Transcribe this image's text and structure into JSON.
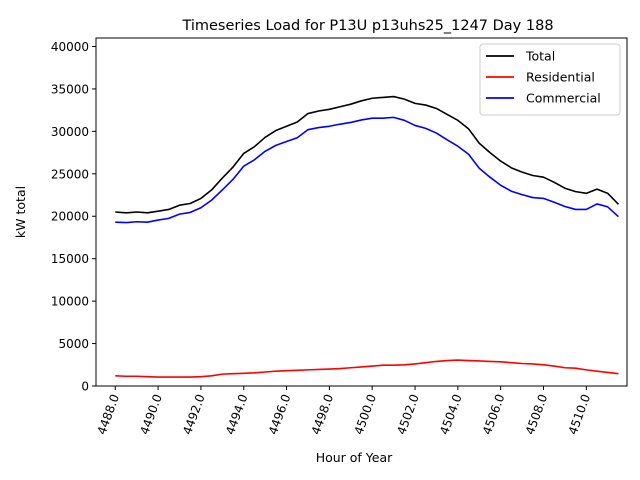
{
  "chart_data": {
    "type": "line",
    "title": "Timeseries Load for P13U p13uhs25_1247  Day 188",
    "xlabel": "Hour of Year",
    "ylabel": "kW total",
    "xlim": [
      4487.1,
      4511.9
    ],
    "ylim": [
      0,
      41000
    ],
    "xticks": [
      4488,
      4490,
      4492,
      4494,
      4496,
      4498,
      4500,
      4502,
      4504,
      4506,
      4508,
      4510
    ],
    "xtick_labels": [
      "4488.0",
      "4490.0",
      "4492.0",
      "4494.0",
      "4496.0",
      "4498.0",
      "4500.0",
      "4502.0",
      "4504.0",
      "4506.0",
      "4508.0",
      "4510.0"
    ],
    "yticks": [
      0,
      5000,
      10000,
      15000,
      20000,
      25000,
      30000,
      35000,
      40000
    ],
    "ytick_labels": [
      "0",
      "5000",
      "10000",
      "15000",
      "20000",
      "25000",
      "30000",
      "35000",
      "40000"
    ],
    "legend_position": "top-right",
    "grid": false,
    "x": [
      4488.0,
      4488.5,
      4489.0,
      4489.5,
      4490.0,
      4490.5,
      4491.0,
      4491.5,
      4492.0,
      4492.5,
      4493.0,
      4493.5,
      4494.0,
      4494.5,
      4495.0,
      4495.5,
      4496.0,
      4496.5,
      4497.0,
      4497.5,
      4498.0,
      4498.5,
      4499.0,
      4499.5,
      4500.0,
      4500.5,
      4501.0,
      4501.5,
      4502.0,
      4502.5,
      4503.0,
      4503.5,
      4504.0,
      4504.5,
      4505.0,
      4505.5,
      4506.0,
      4506.5,
      4507.0,
      4507.5,
      4508.0,
      4508.5,
      4509.0,
      4509.5,
      4510.0,
      4510.5,
      4511.0,
      4511.5
    ],
    "series": [
      {
        "name": "Total",
        "color": "#000000",
        "values": [
          20500,
          20400,
          20500,
          20400,
          20600,
          20800,
          21300,
          21500,
          22100,
          23100,
          24500,
          25800,
          27400,
          28200,
          29300,
          30100,
          30600,
          31100,
          32100,
          32400,
          32600,
          32900,
          33200,
          33600,
          33900,
          34000,
          34100,
          33800,
          33300,
          33100,
          32700,
          32000,
          31300,
          30300,
          28600,
          27500,
          26500,
          25700,
          25200,
          24800,
          24600,
          24000,
          23300,
          22900,
          22700,
          23200,
          22700,
          21400
        ]
      },
      {
        "name": "Residential",
        "color": "#ff0000",
        "values": [
          1200,
          1150,
          1150,
          1100,
          1050,
          1050,
          1050,
          1050,
          1100,
          1200,
          1400,
          1450,
          1500,
          1550,
          1650,
          1750,
          1800,
          1850,
          1900,
          1950,
          2000,
          2050,
          2150,
          2250,
          2350,
          2450,
          2450,
          2500,
          2600,
          2750,
          2900,
          3000,
          3050,
          3000,
          2950,
          2900,
          2850,
          2750,
          2650,
          2600,
          2500,
          2350,
          2150,
          2100,
          1900,
          1750,
          1600,
          1450
        ]
      },
      {
        "name": "Commercial",
        "color": "#0000ff",
        "values": [
          19300,
          19250,
          19350,
          19300,
          19550,
          19750,
          20250,
          20450,
          21000,
          21900,
          23100,
          24350,
          25900,
          26650,
          27650,
          28350,
          28800,
          29250,
          30200,
          30450,
          30600,
          30850,
          31050,
          31350,
          31550,
          31550,
          31650,
          31300,
          30700,
          30350,
          29800,
          29000,
          28250,
          27300,
          25650,
          24600,
          23650,
          22950,
          22550,
          22200,
          22100,
          21650,
          21150,
          20800,
          20800,
          21450,
          21100,
          19950
        ]
      }
    ]
  }
}
